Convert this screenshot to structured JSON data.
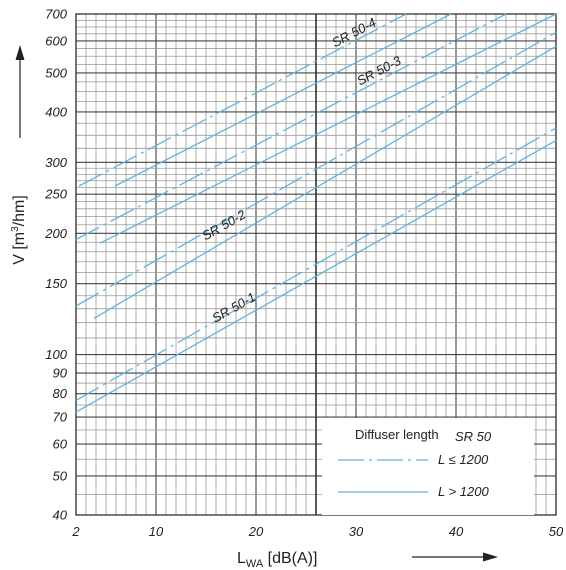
{
  "chart_data": {
    "type": "line",
    "xscale": "linear",
    "yscale": "log",
    "xlim": [
      2,
      50
    ],
    "ylim": [
      40,
      700
    ],
    "grid": true,
    "x_ticks": [
      2,
      10,
      20,
      30,
      40,
      50
    ],
    "x_tick_labels": [
      "2",
      "10",
      "20",
      "30",
      "40",
      "50"
    ],
    "y_ticks": [
      40,
      50,
      60,
      70,
      80,
      90,
      100,
      150,
      200,
      250,
      300,
      400,
      500,
      600,
      700
    ],
    "y_tick_labels": [
      "40",
      "50",
      "60",
      "70",
      "80",
      "90",
      "100",
      "150",
      "200",
      "250",
      "300",
      "400",
      "500",
      "600",
      "700"
    ],
    "xlabel": {
      "main": "L",
      "sub": "WA",
      "rest": " [dB(A)]"
    },
    "ylabel": {
      "main": "V [m",
      "sup": "3",
      "rest": "/hm]"
    },
    "legend": {
      "title": "Diffuser length",
      "title_tag": "SR 50",
      "entries": [
        {
          "label": "L ≤ 1200",
          "style": "dash-dot"
        },
        {
          "label": "L > 1200",
          "style": "solid"
        }
      ],
      "placement": "bottom-right"
    },
    "color": "#5fb4df",
    "series": [
      {
        "name": "SR 50-1",
        "label_pos": {
          "x": 18,
          "v": 128
        },
        "lines": [
          {
            "style": "dash-dot",
            "points": [
              [
                2,
                77
              ],
              [
                50,
                365
              ]
            ]
          },
          {
            "style": "solid",
            "points": [
              [
                2,
                72
              ],
              [
                50,
                340
              ]
            ]
          }
        ]
      },
      {
        "name": "SR 50-2",
        "label_pos": {
          "x": 17,
          "v": 205
        },
        "lines": [
          {
            "style": "dash-dot",
            "points": [
              [
                2,
                132
              ],
              [
                50,
                630
              ]
            ]
          },
          {
            "style": "solid",
            "points": [
              [
                3.8,
                123
              ],
              [
                50,
                582
              ]
            ]
          }
        ]
      },
      {
        "name": "SR 50-3",
        "label_pos": {
          "x": 32.5,
          "v": 495
        },
        "lines": [
          {
            "style": "dash-dot",
            "points": [
              [
                2,
                193
              ],
              [
                45,
                700
              ]
            ]
          },
          {
            "style": "solid",
            "points": [
              [
                4.4,
                189
              ],
              [
                50,
                700
              ]
            ]
          }
        ]
      },
      {
        "name": "SR 50-4",
        "label_pos": {
          "x": 30,
          "v": 616
        },
        "lines": [
          {
            "style": "dash-dot",
            "points": [
              [
                2.3,
                262
              ],
              [
                35,
                700
              ]
            ]
          },
          {
            "style": "solid",
            "points": [
              [
                5.9,
                262
              ],
              [
                39.5,
                700
              ]
            ]
          }
        ]
      }
    ]
  }
}
